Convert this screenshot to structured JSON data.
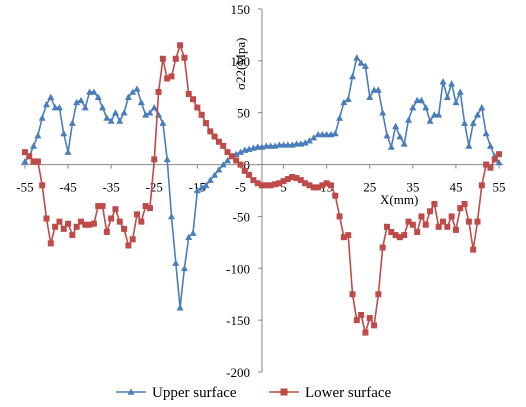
{
  "chart_data": {
    "type": "line",
    "title": "",
    "xlabel": "X(mm)",
    "ylabel": "σ22(Mpa)",
    "xlim": [
      -56,
      56
    ],
    "ylim": [
      -200,
      150
    ],
    "x_ticks": [
      -55,
      -45,
      -35,
      -25,
      -15,
      -5,
      5,
      15,
      25,
      35,
      45,
      55
    ],
    "y_ticks": [
      -200,
      -150,
      -100,
      -50,
      0,
      50,
      100,
      150
    ],
    "grid": false,
    "legend_position": "bottom",
    "series": [
      {
        "name": "Upper surface",
        "color": "#4a7ebb",
        "marker": "triangle",
        "points": [
          [
            -55,
            3
          ],
          [
            -54,
            8
          ],
          [
            -53,
            18
          ],
          [
            -52,
            28
          ],
          [
            -51,
            45
          ],
          [
            -50,
            58
          ],
          [
            -49,
            65
          ],
          [
            -48,
            55
          ],
          [
            -47,
            55
          ],
          [
            -46,
            30
          ],
          [
            -45,
            12
          ],
          [
            -44,
            40
          ],
          [
            -43,
            60
          ],
          [
            -42,
            62
          ],
          [
            -41,
            55
          ],
          [
            -40,
            70
          ],
          [
            -39,
            70
          ],
          [
            -38,
            65
          ],
          [
            -37,
            55
          ],
          [
            -36,
            45
          ],
          [
            -35,
            42
          ],
          [
            -34,
            50
          ],
          [
            -33,
            42
          ],
          [
            -32,
            50
          ],
          [
            -31,
            65
          ],
          [
            -30,
            70
          ],
          [
            -29,
            73
          ],
          [
            -28,
            60
          ],
          [
            -27,
            48
          ],
          [
            -26,
            50
          ],
          [
            -25,
            55
          ],
          [
            -24,
            48
          ],
          [
            -23,
            40
          ],
          [
            -22,
            5
          ],
          [
            -21,
            -50
          ],
          [
            -20,
            -95
          ],
          [
            -19,
            -138
          ],
          [
            -18,
            -100
          ],
          [
            -17,
            -70
          ],
          [
            -16,
            -66
          ],
          [
            -15,
            -25
          ],
          [
            -14,
            -22
          ],
          [
            -13,
            -20
          ],
          [
            -12,
            -15
          ],
          [
            -11,
            -10
          ],
          [
            -10,
            -5
          ],
          [
            -9,
            0
          ],
          [
            -8,
            4
          ],
          [
            -7,
            8
          ],
          [
            -6,
            10
          ],
          [
            -5,
            12
          ],
          [
            -4,
            14
          ],
          [
            -3,
            15
          ],
          [
            -2,
            16
          ],
          [
            -1,
            17
          ],
          [
            0,
            17
          ],
          [
            1,
            18
          ],
          [
            2,
            18
          ],
          [
            3,
            18
          ],
          [
            4,
            19
          ],
          [
            5,
            19
          ],
          [
            6,
            19
          ],
          [
            7,
            19
          ],
          [
            8,
            20
          ],
          [
            9,
            20
          ],
          [
            10,
            21
          ],
          [
            11,
            23
          ],
          [
            12,
            26
          ],
          [
            13,
            29
          ],
          [
            14,
            29
          ],
          [
            15,
            29
          ],
          [
            16,
            29
          ],
          [
            17,
            30
          ],
          [
            18,
            45
          ],
          [
            19,
            60
          ],
          [
            20,
            63
          ],
          [
            21,
            85
          ],
          [
            22,
            103
          ],
          [
            23,
            98
          ],
          [
            24,
            95
          ],
          [
            25,
            65
          ],
          [
            26,
            72
          ],
          [
            27,
            72
          ],
          [
            28,
            50
          ],
          [
            29,
            28
          ],
          [
            30,
            17
          ],
          [
            31,
            37
          ],
          [
            32,
            27
          ],
          [
            33,
            20
          ],
          [
            34,
            43
          ],
          [
            35,
            55
          ],
          [
            36,
            62
          ],
          [
            37,
            62
          ],
          [
            38,
            55
          ],
          [
            39,
            42
          ],
          [
            40,
            48
          ],
          [
            41,
            48
          ],
          [
            42,
            80
          ],
          [
            43,
            65
          ],
          [
            44,
            78
          ],
          [
            45,
            60
          ],
          [
            46,
            70
          ],
          [
            47,
            40
          ],
          [
            48,
            18
          ],
          [
            49,
            40
          ],
          [
            50,
            48
          ],
          [
            51,
            55
          ],
          [
            52,
            30
          ],
          [
            53,
            18
          ],
          [
            54,
            8
          ],
          [
            55,
            2
          ]
        ]
      },
      {
        "name": "Lower surface",
        "color": "#be4b48",
        "marker": "square",
        "points": [
          [
            -55,
            12
          ],
          [
            -54,
            8
          ],
          [
            -53,
            3
          ],
          [
            -52,
            3
          ],
          [
            -51,
            -20
          ],
          [
            -50,
            -52
          ],
          [
            -49,
            -76
          ],
          [
            -48,
            -60
          ],
          [
            -47,
            -55
          ],
          [
            -46,
            -62
          ],
          [
            -45,
            -57
          ],
          [
            -44,
            -68
          ],
          [
            -43,
            -60
          ],
          [
            -42,
            -55
          ],
          [
            -41,
            -58
          ],
          [
            -40,
            -58
          ],
          [
            -39,
            -57
          ],
          [
            -38,
            -40
          ],
          [
            -37,
            -40
          ],
          [
            -36,
            -65
          ],
          [
            -35,
            -52
          ],
          [
            -34,
            -43
          ],
          [
            -33,
            -55
          ],
          [
            -32,
            -62
          ],
          [
            -31,
            -78
          ],
          [
            -30,
            -72
          ],
          [
            -29,
            -48
          ],
          [
            -28,
            -55
          ],
          [
            -27,
            -40
          ],
          [
            -26,
            -42
          ],
          [
            -25,
            5
          ],
          [
            -24,
            70
          ],
          [
            -23,
            102
          ],
          [
            -22,
            83
          ],
          [
            -21,
            85
          ],
          [
            -20,
            102
          ],
          [
            -19,
            115
          ],
          [
            -18,
            103
          ],
          [
            -17,
            68
          ],
          [
            -16,
            63
          ],
          [
            -15,
            55
          ],
          [
            -14,
            48
          ],
          [
            -13,
            40
          ],
          [
            -12,
            32
          ],
          [
            -11,
            27
          ],
          [
            -10,
            22
          ],
          [
            -9,
            18
          ],
          [
            -8,
            12
          ],
          [
            -7,
            8
          ],
          [
            -6,
            4
          ],
          [
            -5,
            0
          ],
          [
            -4,
            -6
          ],
          [
            -3,
            -10
          ],
          [
            -2,
            -15
          ],
          [
            -1,
            -18
          ],
          [
            0,
            -20
          ],
          [
            1,
            -20
          ],
          [
            2,
            -20
          ],
          [
            3,
            -19
          ],
          [
            4,
            -18
          ],
          [
            5,
            -16
          ],
          [
            6,
            -14
          ],
          [
            7,
            -12
          ],
          [
            8,
            -13
          ],
          [
            9,
            -15
          ],
          [
            10,
            -18
          ],
          [
            11,
            -20
          ],
          [
            12,
            -22
          ],
          [
            13,
            -22
          ],
          [
            14,
            -20
          ],
          [
            15,
            -18
          ],
          [
            16,
            -20
          ],
          [
            17,
            -30
          ],
          [
            18,
            -50
          ],
          [
            19,
            -70
          ],
          [
            20,
            -68
          ],
          [
            21,
            -125
          ],
          [
            22,
            -150
          ],
          [
            23,
            -145
          ],
          [
            24,
            -162
          ],
          [
            25,
            -148
          ],
          [
            26,
            -155
          ],
          [
            27,
            -125
          ],
          [
            28,
            -80
          ],
          [
            29,
            -60
          ],
          [
            30,
            -65
          ],
          [
            31,
            -68
          ],
          [
            32,
            -70
          ],
          [
            33,
            -68
          ],
          [
            34,
            -55
          ],
          [
            35,
            -58
          ],
          [
            36,
            -65
          ],
          [
            37,
            -50
          ],
          [
            38,
            -58
          ],
          [
            39,
            -45
          ],
          [
            40,
            -38
          ],
          [
            41,
            -60
          ],
          [
            42,
            -55
          ],
          [
            43,
            -60
          ],
          [
            44,
            -50
          ],
          [
            45,
            -63
          ],
          [
            46,
            -42
          ],
          [
            47,
            -38
          ],
          [
            48,
            -55
          ],
          [
            49,
            -82
          ],
          [
            50,
            -55
          ],
          [
            51,
            -20
          ],
          [
            52,
            0
          ],
          [
            53,
            -3
          ],
          [
            54,
            5
          ],
          [
            55,
            10
          ]
        ]
      }
    ]
  }
}
